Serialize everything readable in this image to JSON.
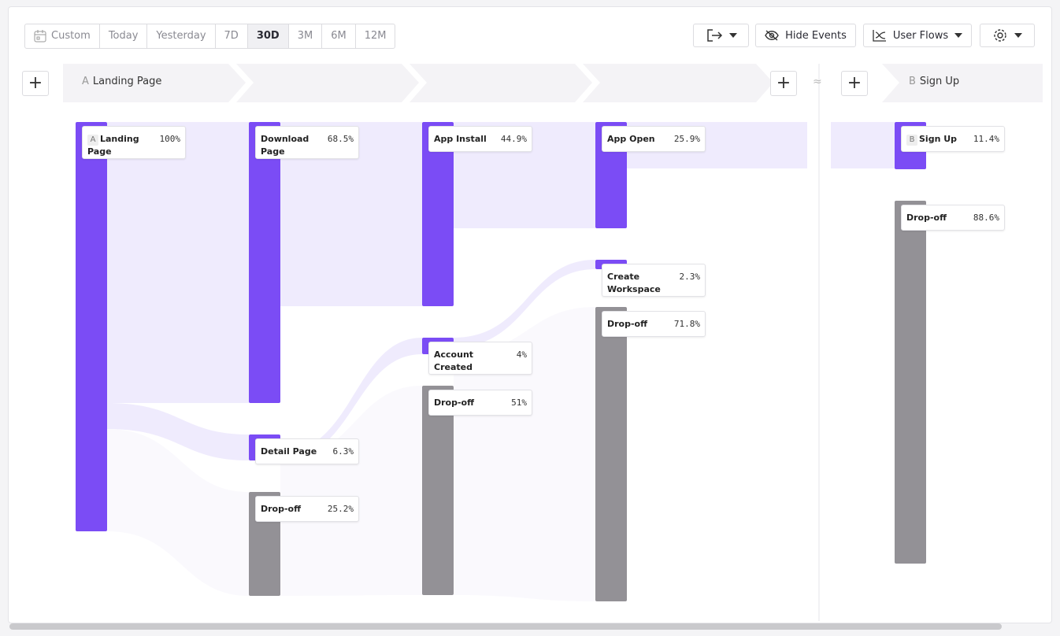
{
  "toolbar": {
    "date_ranges": [
      "Custom",
      "Today",
      "Yesterday",
      "7D",
      "30D",
      "3M",
      "6M",
      "12M"
    ],
    "buttons": [
      "Hide Events",
      "User Flows"
    ]
  },
  "steps": [
    {
      "letter": "A",
      "label": "Landing Page"
    },
    {
      "letter": "B",
      "label": "Sign Up"
    }
  ],
  "divider": "≈",
  "columns": [
    [
      {
        "label": "Landing Page",
        "percent": "100%"
      }
    ],
    [
      {
        "label": "Download Page",
        "percent": "68.5%"
      },
      {
        "label": "Detail Page",
        "percent": "6.3%"
      },
      {
        "label": "Drop-off",
        "percent": "25.2%"
      }
    ],
    [
      {
        "label": "App Install",
        "percent": "44.9%"
      },
      {
        "label": "Account Created",
        "percent": "4%"
      },
      {
        "label": "Drop-off",
        "percent": "51%"
      }
    ],
    [
      {
        "label": "App Open",
        "percent": "25.9%"
      },
      {
        "label": "Create Workspace",
        "percent": "2.3%"
      },
      {
        "label": "Drop-off",
        "percent": "71.8%"
      }
    ],
    [
      {
        "label": "Sign Up",
        "percent": "11.4%"
      },
      {
        "label": "Drop-off",
        "percent": "88.6%"
      }
    ]
  ]
}
